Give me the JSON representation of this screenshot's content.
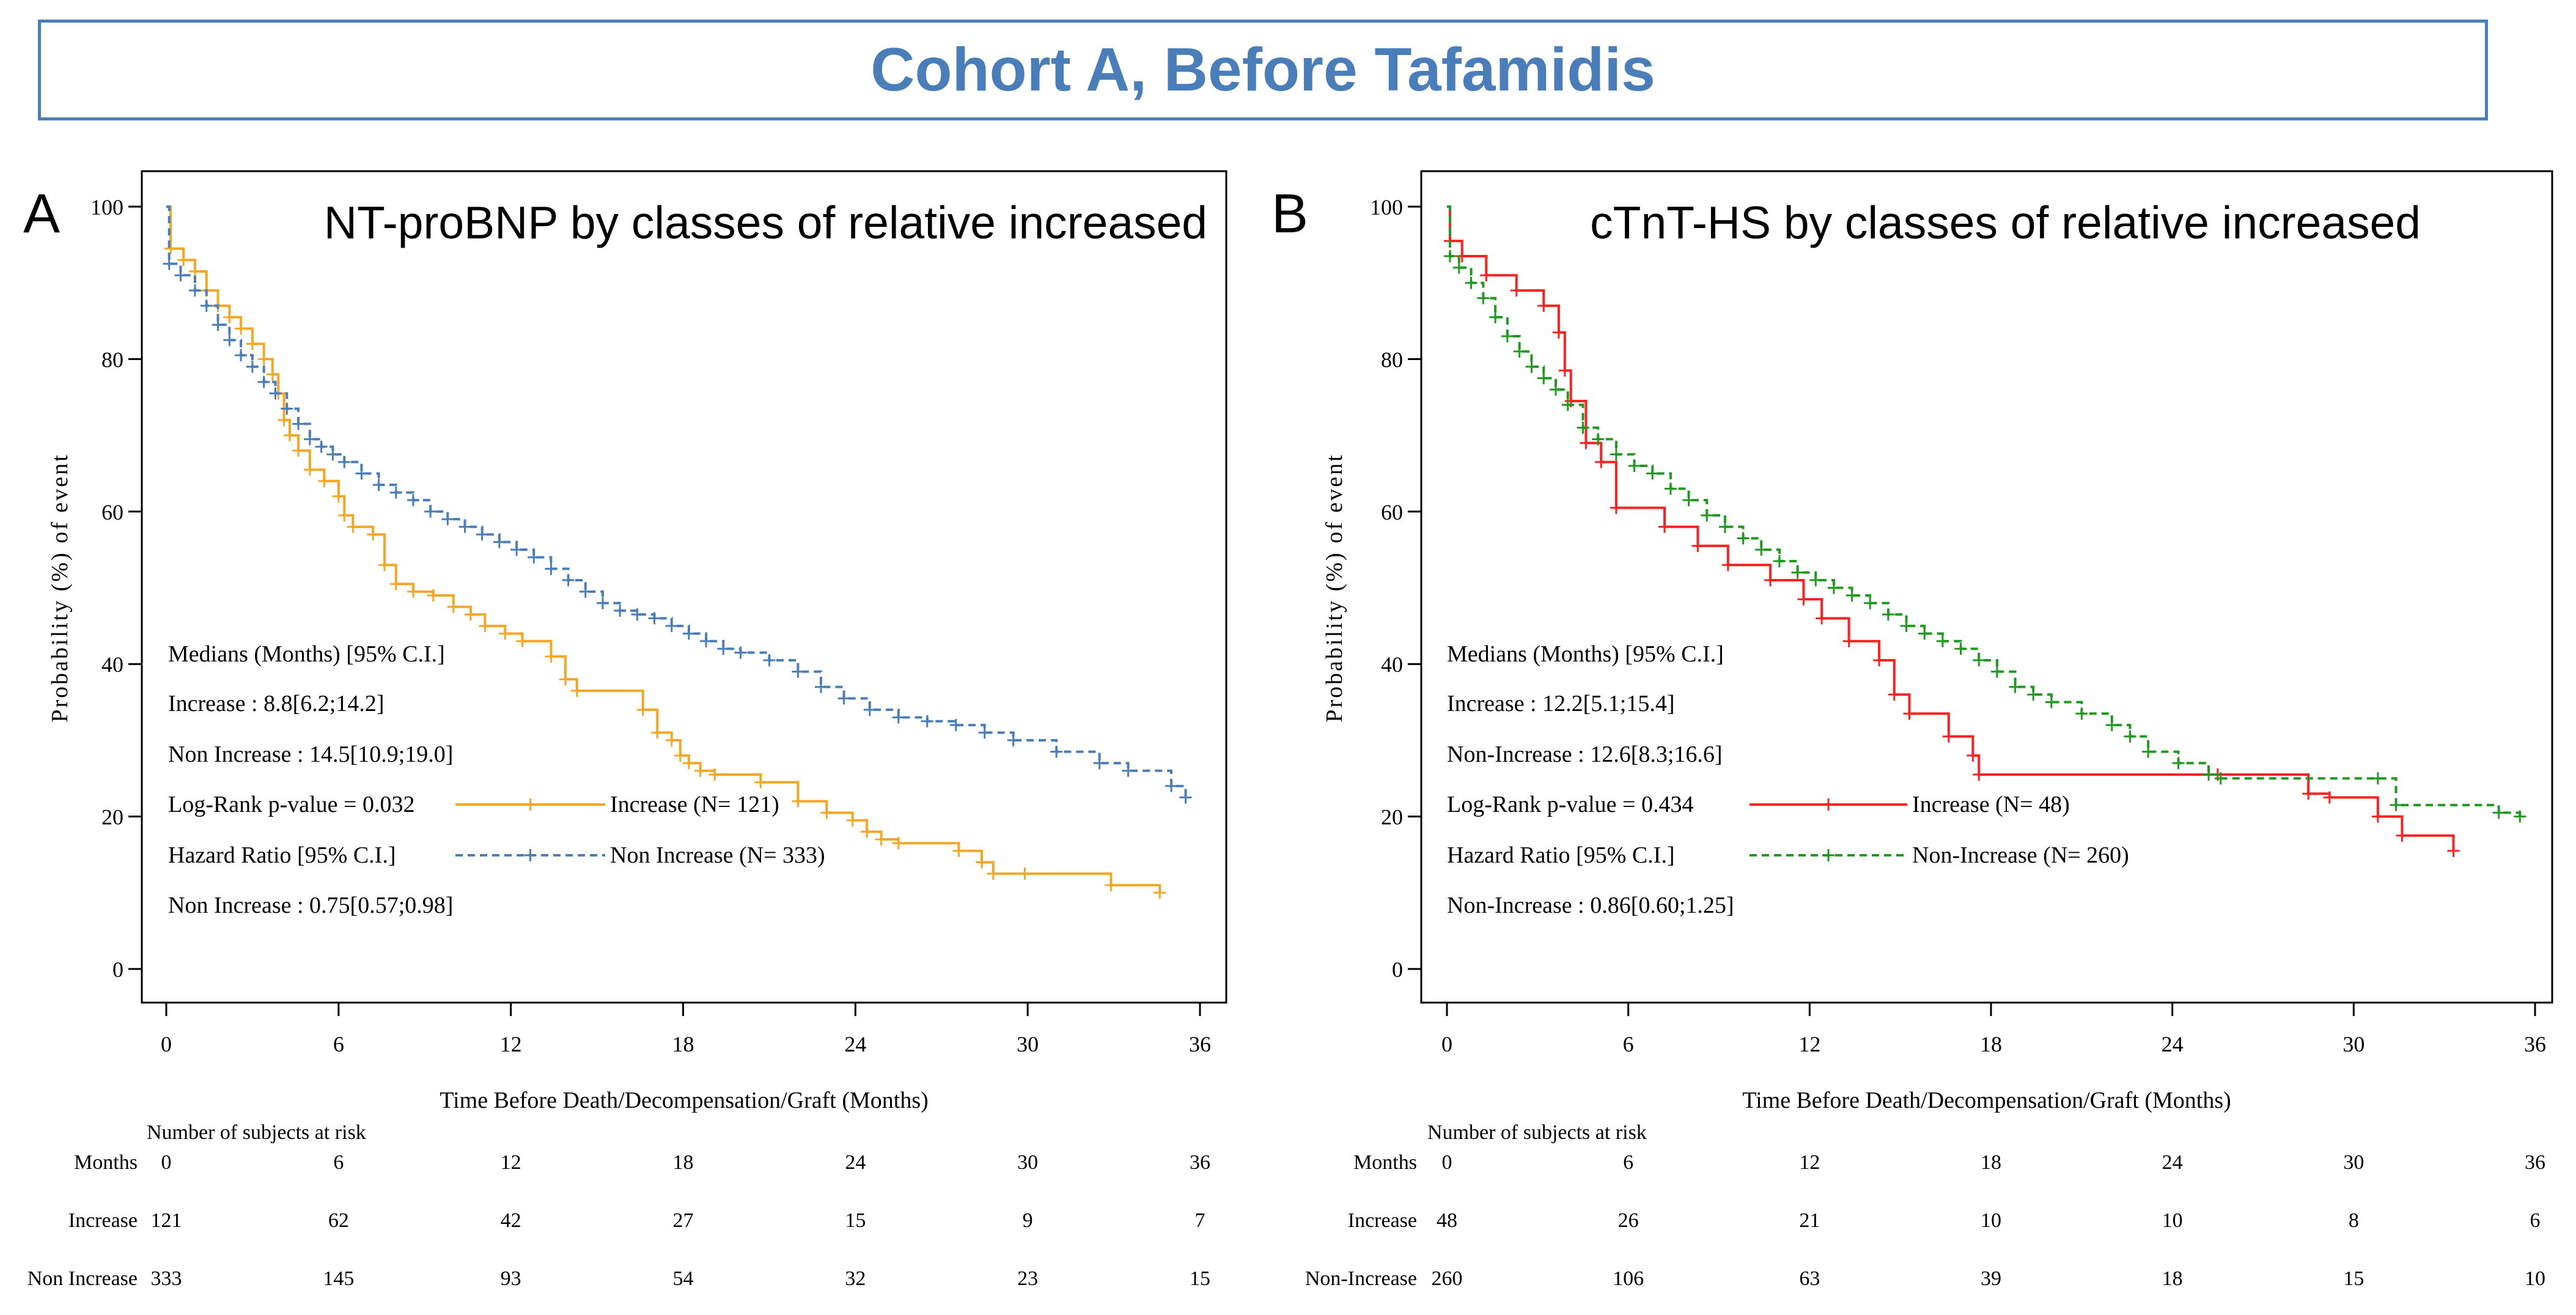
{
  "figure_title": "Cohort A, Before Tafamidis",
  "chart_data": [
    {
      "type": "line",
      "subtype": "kaplan-meier",
      "panel_letter": "A",
      "title": "NT-proBNP by classes of relative increased",
      "xlabel": "Time Before Death/Decompensation/Graft (Months)",
      "ylabel": "Probability (%) of event",
      "xlim": [
        0,
        36
      ],
      "ylim": [
        0,
        100
      ],
      "xticks": [
        "0",
        "6",
        "12",
        "18",
        "24",
        "30",
        "36"
      ],
      "yticks": [
        "0",
        "20",
        "40",
        "60",
        "80",
        "100"
      ],
      "annotations": [
        "Medians (Months) [95% C.I.]",
        "Increase : 8.8[6.2;14.2]",
        "Non Increase : 14.5[10.9;19.0]",
        "Log-Rank p-value = 0.032",
        "Hazard Ratio [95% C.I.]",
        "Non Increase : 0.75[0.57;0.98]"
      ],
      "series": [
        {
          "name": "Increase (N= 121)",
          "color": "#F5A623",
          "dash": "solid",
          "x": [
            0,
            0.15,
            0.6,
            1.0,
            1.4,
            1.8,
            2.2,
            2.6,
            3.0,
            3.4,
            3.7,
            3.9,
            4.1,
            4.3,
            4.6,
            5.0,
            5.5,
            6.0,
            6.2,
            6.5,
            7.2,
            7.6,
            8.0,
            8.6,
            9.3,
            10.0,
            10.6,
            11.1,
            11.8,
            12.4,
            13.4,
            13.9,
            14.3,
            16.6,
            17.1,
            17.6,
            17.9,
            18.2,
            18.6,
            19.1,
            20.7,
            22.0,
            23.0,
            23.9,
            24.4,
            24.9,
            25.5,
            27.6,
            28.4,
            28.8,
            29.9,
            32.9,
            34.6
          ],
          "y": [
            100,
            94.5,
            93,
            91.5,
            89,
            87,
            85.5,
            84,
            82,
            80,
            78,
            75.5,
            72,
            70,
            68,
            65.5,
            64,
            62,
            59.5,
            58,
            57,
            53,
            50.5,
            49.5,
            49,
            47.5,
            46.5,
            45,
            44,
            43,
            41,
            38,
            36.5,
            34,
            31,
            30,
            28,
            27,
            26,
            25.5,
            24.5,
            22,
            20.5,
            19.5,
            18,
            17,
            16.5,
            15.5,
            14,
            12.5,
            12.5,
            11,
            10
          ]
        },
        {
          "name": "Non Increase (N= 333)",
          "color": "#4A7EBB",
          "dash": "dashed",
          "x": [
            0,
            0.1,
            0.5,
            1.0,
            1.4,
            1.8,
            2.2,
            2.6,
            3.0,
            3.4,
            3.8,
            4.2,
            4.6,
            5.0,
            5.4,
            5.8,
            6.2,
            6.8,
            7.4,
            8.0,
            8.6,
            9.2,
            9.8,
            10.4,
            11.0,
            11.6,
            12.2,
            12.8,
            13.4,
            14.0,
            14.6,
            15.2,
            15.8,
            16.4,
            17.0,
            17.6,
            18.2,
            18.8,
            19.4,
            20.0,
            21.0,
            22.0,
            22.8,
            23.6,
            24.5,
            25.5,
            26.5,
            27.5,
            28.5,
            29.5,
            31.0,
            32.5,
            33.5,
            35.0,
            35.5
          ],
          "y": [
            100,
            92.5,
            91,
            89,
            87,
            84.5,
            82.5,
            80.5,
            79,
            77,
            75.5,
            73.5,
            71.5,
            69.5,
            68.5,
            67.5,
            66.5,
            65,
            63.5,
            62.5,
            61.5,
            60,
            59,
            58,
            57,
            56,
            55,
            54,
            52.5,
            51,
            49.5,
            48,
            47,
            46.5,
            46,
            45,
            44,
            43,
            42,
            41.5,
            40.5,
            39,
            37,
            35.5,
            34,
            33,
            32.5,
            32,
            31,
            30,
            28.5,
            27,
            26,
            24,
            22.5
          ]
        }
      ],
      "risk_table": {
        "header": "Number of subjects at risk",
        "rows": [
          {
            "label": "Months",
            "values": [
              "0",
              "6",
              "12",
              "18",
              "24",
              "30",
              "36"
            ]
          },
          {
            "label": "Increase",
            "values": [
              "121",
              "62",
              "42",
              "27",
              "15",
              "9",
              "7"
            ]
          },
          {
            "label": "Non Increase",
            "values": [
              "333",
              "145",
              "93",
              "54",
              "32",
              "23",
              "15"
            ]
          }
        ]
      }
    },
    {
      "type": "line",
      "subtype": "kaplan-meier",
      "panel_letter": "B",
      "title": "cTnT-HS by classes of relative increased",
      "xlabel": "Time Before Death/Decompensation/Graft (Months)",
      "ylabel": "Probability (%) of event",
      "xlim": [
        0,
        36
      ],
      "ylim": [
        0,
        100
      ],
      "xticks": [
        "0",
        "6",
        "12",
        "18",
        "24",
        "30",
        "36"
      ],
      "yticks": [
        "0",
        "20",
        "40",
        "60",
        "80",
        "100"
      ],
      "annotations": [
        "Medians (Months) [95% C.I.]",
        "Increase : 12.2[5.1;15.4]",
        "Non-Increase : 12.6[8.3;16.6]",
        "Log-Rank p-value = 0.434",
        "Hazard Ratio [95% C.I.]",
        "Non-Increase : 0.86[0.60;1.25]"
      ],
      "series": [
        {
          "name": "Increase (N= 48)",
          "color": "#FF2020",
          "dash": "solid",
          "x": [
            0,
            0.1,
            0.5,
            1.3,
            2.3,
            3.2,
            3.7,
            3.9,
            4.1,
            4.6,
            5.1,
            5.6,
            7.2,
            8.3,
            9.3,
            10.7,
            11.8,
            12.4,
            13.3,
            14.3,
            14.8,
            15.3,
            16.6,
            17.4,
            17.6,
            25.5,
            28.5,
            29.2,
            30.8,
            31.6,
            33.3
          ],
          "y": [
            100,
            95.5,
            93.5,
            91,
            89,
            87,
            83.5,
            78.5,
            74.5,
            69,
            66.5,
            60.5,
            58,
            55.5,
            53,
            51,
            48.5,
            46,
            43,
            40.5,
            36,
            33.5,
            30.5,
            28,
            25.5,
            25.5,
            23,
            22.5,
            20,
            17.5,
            15.5
          ]
        },
        {
          "name": "Non-Increase (N= 260)",
          "color": "#1E9A1E",
          "dash": "dashed",
          "x": [
            0,
            0.1,
            0.4,
            0.8,
            1.2,
            1.6,
            2.0,
            2.4,
            2.8,
            3.2,
            3.6,
            4.0,
            4.5,
            5.0,
            5.6,
            6.2,
            6.8,
            7.4,
            8.0,
            8.6,
            9.2,
            9.8,
            10.4,
            11.0,
            11.6,
            12.2,
            12.8,
            13.4,
            14.0,
            14.6,
            15.2,
            15.8,
            16.4,
            17.0,
            17.6,
            18.2,
            18.8,
            19.4,
            20.0,
            21.0,
            22.0,
            22.6,
            23.2,
            24.2,
            25.2,
            25.6,
            30.8,
            31.4,
            34.8,
            35.5
          ],
          "y": [
            100,
            93.5,
            92,
            90,
            88,
            85.5,
            83,
            81,
            79,
            77.5,
            76,
            74,
            71,
            69.5,
            67.5,
            66,
            65,
            63,
            61.5,
            59.5,
            58,
            56.5,
            55,
            53.5,
            52,
            51,
            50,
            49,
            48,
            46.5,
            45,
            44,
            43,
            42,
            40.5,
            39,
            37,
            36,
            35,
            33.5,
            32,
            30.5,
            28.5,
            27,
            25.5,
            25,
            25,
            21.5,
            20.5,
            20
          ]
        }
      ],
      "risk_table": {
        "header": "Number of subjects at risk",
        "rows": [
          {
            "label": "Months",
            "values": [
              "0",
              "6",
              "12",
              "18",
              "24",
              "30",
              "36"
            ]
          },
          {
            "label": "Increase",
            "values": [
              "48",
              "26",
              "21",
              "10",
              "10",
              "8",
              "6"
            ]
          },
          {
            "label": "Non-Increase",
            "values": [
              "260",
              "106",
              "63",
              "39",
              "18",
              "15",
              "10"
            ]
          }
        ]
      }
    }
  ]
}
